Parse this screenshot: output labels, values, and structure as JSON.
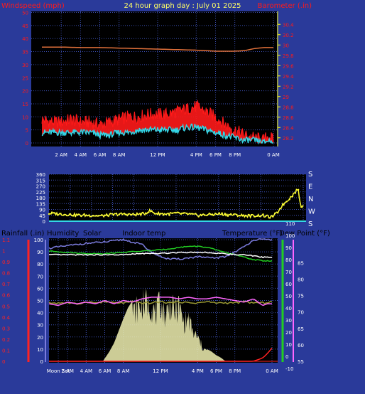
{
  "header": {
    "title": "24 hour graph day : July 01 2025",
    "left_label": "Windspeed (mph)",
    "right_label": "Barometer (.in)"
  },
  "colors": {
    "background": "#2a3a9a",
    "plot_bg": "#000000",
    "grid": "#3b4fb3",
    "wind_gust": "#ff1a1a",
    "wind_avg": "#33d6e6",
    "barometer": "#e0703a",
    "direction": "#ffff33",
    "humidity": "#7b7bdd",
    "solar": "#999933",
    "indoor_temp": "#ff66ff",
    "temperature": "#22cc22",
    "dew_point": "#ffffff",
    "rainfall": "#ff2222",
    "solar_fill": "#f0f0b0"
  },
  "chart_data": [
    {
      "type": "line",
      "name": "wind-barometer",
      "title": "24 hour graph day : July 01 2025",
      "ylabel": "Windspeed (mph)",
      "y2label": "Barometer (.in)",
      "ylim": [
        0,
        50
      ],
      "yticks": [
        "0",
        "5",
        "10",
        "15",
        "20",
        "25",
        "30",
        "35",
        "40",
        "45",
        "50"
      ],
      "y2lim": [
        28.1,
        30.5
      ],
      "y2ticks": [
        "28.2",
        "28.4",
        "28.6",
        "28.8",
        "29",
        "29.2",
        "29.4",
        "29.6",
        "29.8",
        "30",
        "30.2",
        "30.4"
      ],
      "xlim": [
        0,
        24
      ],
      "xticks": [
        {
          "h": 2,
          "label": "2 AM"
        },
        {
          "h": 4,
          "label": "4 AM"
        },
        {
          "h": 6,
          "label": "6 AM"
        },
        {
          "h": 8,
          "label": "8 AM"
        },
        {
          "h": 12,
          "label": "12 PM"
        },
        {
          "h": 16,
          "label": "4 PM"
        },
        {
          "h": 18,
          "label": "6 PM"
        },
        {
          "h": 20,
          "label": "8 PM"
        },
        {
          "h": 24,
          "label": "0 AM"
        }
      ],
      "series": [
        {
          "name": "gust",
          "x": [
            0,
            1,
            2,
            3,
            4,
            5,
            6,
            7,
            8,
            9,
            10,
            11,
            12,
            13,
            14,
            15,
            16,
            17,
            18,
            19,
            20,
            21,
            22,
            23,
            23.5,
            24
          ],
          "values": [
            9,
            8,
            8,
            9,
            8,
            8,
            7,
            8,
            9,
            10,
            10,
            11,
            11,
            11,
            12,
            13,
            14,
            12,
            10,
            7,
            5,
            3,
            2,
            1,
            3,
            1
          ]
        },
        {
          "name": "average",
          "x": [
            0,
            1,
            2,
            3,
            4,
            5,
            6,
            7,
            8,
            9,
            10,
            11,
            12,
            13,
            14,
            15,
            16,
            17,
            18,
            19,
            20,
            21,
            22,
            23,
            23.5,
            24
          ],
          "values": [
            4,
            4,
            4,
            4,
            4,
            4,
            3,
            3,
            4,
            4,
            5,
            5,
            5,
            5,
            5,
            6,
            6,
            5,
            4,
            3,
            2,
            1,
            1,
            0,
            1,
            0
          ]
        },
        {
          "name": "barometer",
          "x": [
            0,
            2,
            4,
            6,
            8,
            10,
            12,
            14,
            16,
            17,
            18,
            19,
            20,
            21,
            22,
            23,
            24
          ],
          "values": [
            29.96,
            29.96,
            29.95,
            29.95,
            29.94,
            29.93,
            29.92,
            29.91,
            29.9,
            29.89,
            29.88,
            29.88,
            29.88,
            29.89,
            29.93,
            29.95,
            29.95
          ]
        }
      ]
    },
    {
      "type": "line",
      "name": "wind-direction",
      "ylim": [
        0,
        360
      ],
      "yticks": [
        "0",
        "45",
        "90",
        "135",
        "180",
        "225",
        "270",
        "315",
        "360"
      ],
      "compass": [
        "S",
        "E",
        "N",
        "W",
        "S"
      ],
      "xlim": [
        0,
        24
      ],
      "series": [
        {
          "name": "direction",
          "x": [
            0,
            1,
            2,
            3,
            4,
            5,
            6,
            7,
            8,
            9,
            9.5,
            10,
            11,
            12,
            13,
            14,
            15,
            16,
            17,
            18,
            19,
            20,
            21,
            21.5,
            22,
            22.5,
            23,
            23.5,
            23.8,
            24
          ],
          "values": [
            60,
            55,
            50,
            45,
            45,
            40,
            50,
            55,
            50,
            55,
            80,
            60,
            55,
            60,
            55,
            45,
            50,
            55,
            50,
            45,
            40,
            45,
            30,
            60,
            120,
            160,
            200,
            250,
            100,
            130
          ]
        }
      ]
    },
    {
      "type": "line",
      "name": "rain-humidity-temp",
      "legend": [
        "Rainfall (.in)",
        "Humidity",
        "Solar",
        "Indoor temp",
        "Temperature (°F)",
        "Dew Point (°F)"
      ],
      "rain_ticks": [
        "0",
        "0.1",
        "0.2",
        "0.3",
        "0.4",
        "0.5",
        "0.6",
        "0.7",
        "0.8",
        "0.9",
        "1",
        "1.1"
      ],
      "humidity_ticks": [
        "0",
        "10",
        "20",
        "30",
        "40",
        "50",
        "60",
        "70",
        "80",
        "90",
        "100"
      ],
      "temp_ticks": [
        "-10",
        "0",
        "10",
        "20",
        "30",
        "40",
        "50",
        "60",
        "70",
        "80",
        "90",
        "100",
        "110"
      ],
      "indoor_ticks": [
        "55",
        "60",
        "65",
        "70",
        "75",
        "80",
        "85"
      ],
      "xticks": [
        {
          "h": 1,
          "label": "Moon Set"
        },
        {
          "h": 2,
          "label": "2 AM"
        },
        {
          "h": 4,
          "label": "4 AM"
        },
        {
          "h": 6,
          "label": "6 AM"
        },
        {
          "h": 8,
          "label": "8 AM"
        },
        {
          "h": 12,
          "label": "12 PM"
        },
        {
          "h": 16,
          "label": "4 PM"
        },
        {
          "h": 18,
          "label": "6 PM"
        },
        {
          "h": 20,
          "label": "8 PM"
        },
        {
          "h": 24,
          "label": "0 AM"
        }
      ],
      "series": [
        {
          "name": "humidity",
          "x": [
            0,
            2,
            4,
            6,
            8,
            10,
            11,
            12,
            13,
            14,
            15,
            16,
            17,
            18,
            19,
            20,
            21,
            22,
            23,
            24
          ],
          "values": [
            93,
            95,
            97,
            98,
            100,
            96,
            90,
            86,
            84,
            84,
            85,
            86,
            85,
            85,
            86,
            90,
            94,
            100,
            100,
            100
          ]
        },
        {
          "name": "temperature",
          "x": [
            0,
            2,
            4,
            6,
            8,
            10,
            12,
            14,
            15,
            16,
            17,
            18,
            19,
            20,
            21,
            22,
            23,
            24
          ],
          "values": [
            87,
            86,
            85,
            85,
            86,
            87,
            88,
            90,
            91,
            91,
            90,
            88,
            86,
            84,
            82,
            80,
            79,
            79
          ]
        },
        {
          "name": "dew_point",
          "x": [
            0,
            2,
            4,
            6,
            8,
            10,
            12,
            14,
            15,
            16,
            17,
            18,
            19,
            20,
            21,
            22,
            23,
            24
          ],
          "values": [
            84,
            84,
            84,
            84,
            84,
            85,
            85,
            86,
            86,
            86,
            86,
            85,
            85,
            84,
            84,
            83,
            82,
            82
          ]
        },
        {
          "name": "indoor_temp",
          "x": [
            0,
            1,
            2,
            3,
            4,
            5,
            6,
            7,
            8,
            9,
            10,
            11,
            12,
            13,
            14,
            15,
            16,
            17,
            18,
            19,
            20,
            21,
            22,
            23,
            23.5,
            24
          ],
          "values": [
            72.5,
            72,
            73,
            72.5,
            73,
            72.5,
            73.5,
            72.5,
            73.5,
            73,
            74,
            74.5,
            74.5,
            74.5,
            74,
            74.5,
            74,
            74,
            74.5,
            74,
            73.5,
            73,
            74,
            72,
            72.5,
            72.5
          ]
        },
        {
          "name": "solar",
          "x": [
            0,
            1,
            2,
            3,
            4,
            5,
            6,
            7,
            8,
            9,
            10,
            11,
            12,
            13,
            14,
            15,
            16,
            17,
            18,
            19,
            20,
            21,
            22,
            23,
            24
          ],
          "values": [
            48,
            48,
            48,
            47,
            49,
            48,
            49,
            48,
            48,
            49,
            48,
            48,
            49,
            48,
            49,
            48,
            48,
            49,
            48,
            48,
            48,
            49,
            48,
            48,
            49
          ]
        },
        {
          "name": "solar_radiation",
          "x": [
            5.8,
            6.5,
            7,
            7.5,
            8,
            8.5,
            9,
            9.5,
            10,
            10.5,
            11,
            11.5,
            12,
            12.5,
            13,
            13.5,
            14,
            14.5,
            15,
            15.5,
            16,
            16.5,
            17,
            17.5,
            18,
            18.5,
            19
          ],
          "values": [
            0,
            8,
            15,
            25,
            35,
            44,
            50,
            56,
            60,
            62,
            58,
            50,
            62,
            48,
            60,
            52,
            58,
            40,
            45,
            30,
            25,
            15,
            10,
            8,
            5,
            3,
            0
          ]
        },
        {
          "name": "rainfall",
          "x": [
            0,
            21,
            22,
            23,
            23.5,
            24
          ],
          "values": [
            0,
            0,
            0,
            0.03,
            0.07,
            0.12
          ]
        }
      ]
    }
  ]
}
